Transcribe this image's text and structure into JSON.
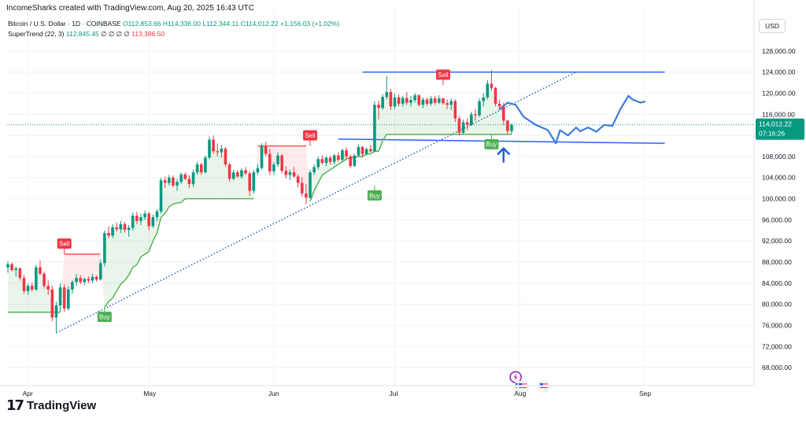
{
  "header": {
    "credit": "IncomeSharks created with TradingView.com, Aug 20, 2025 16:43 UTC",
    "symbol": "Bitcoin / U.S. Dollar · 1D · COINBASE",
    "open": "O112,853.66",
    "high": "H114,336.00",
    "low": "L112,344.11",
    "close": "C114,012.22",
    "change": "+1,156.03 (+1.02%)",
    "indicator": "SuperTrend (22, 3)",
    "indicator_value": "112,845.45",
    "indicator_flags": "∅ ∅ ∅ ∅",
    "indicator_value2": "113,386.50",
    "currency": "USD"
  },
  "brand": {
    "name": "TradingView"
  },
  "chart_data": {
    "type": "candlestick",
    "price_axis": {
      "ticks": [
        "128,000.00",
        "124,000.00",
        "120,000.00",
        "116,000.00",
        "112,000.00",
        "108,000.00",
        "104,000.00",
        "100,000.00",
        "96,000.00",
        "92,000.00",
        "88,000.00",
        "84,000.00",
        "80,000.00",
        "76,000.00",
        "72,000.00",
        "68,000.00"
      ],
      "ylim": [
        64600,
        130500
      ]
    },
    "time_axis": {
      "months": [
        "Apr",
        "May",
        "Jun",
        "Jul",
        "Aug",
        "Sep"
      ],
      "month_index": [
        5,
        35,
        66,
        96,
        127,
        158
      ]
    },
    "last_price": {
      "value": 114012.22,
      "label": "114,012.22",
      "countdown": "07:16:26"
    },
    "candles": [
      [
        87000,
        88200,
        86000,
        87600
      ],
      [
        87600,
        88000,
        86200,
        86500
      ],
      [
        86500,
        87200,
        85200,
        86800
      ],
      [
        86800,
        87000,
        84500,
        85000
      ],
      [
        85000,
        85600,
        82000,
        82500
      ],
      [
        82500,
        84000,
        81800,
        83500
      ],
      [
        83500,
        84200,
        82400,
        82800
      ],
      [
        82800,
        87500,
        82500,
        87000
      ],
      [
        87000,
        88300,
        85500,
        85800
      ],
      [
        85800,
        86200,
        83000,
        83500
      ],
      [
        83500,
        84500,
        81800,
        82800
      ],
      [
        82800,
        83500,
        76800,
        77500
      ],
      [
        77500,
        80500,
        74600,
        79800
      ],
      [
        79800,
        84000,
        78600,
        83200
      ],
      [
        83200,
        83800,
        78500,
        79200
      ],
      [
        79200,
        83500,
        78800,
        82800
      ],
      [
        82800,
        84600,
        82000,
        84200
      ],
      [
        84200,
        85800,
        83500,
        85000
      ],
      [
        85000,
        85500,
        83800,
        84200
      ],
      [
        84200,
        85000,
        83600,
        84800
      ],
      [
        84800,
        85300,
        84000,
        84500
      ],
      [
        84500,
        85800,
        84000,
        85200
      ],
      [
        85200,
        85500,
        84300,
        84700
      ],
      [
        84700,
        88500,
        84500,
        87800
      ],
      [
        87800,
        94000,
        87200,
        93500
      ],
      [
        93500,
        94800,
        92500,
        93000
      ],
      [
        93000,
        95200,
        92500,
        94600
      ],
      [
        94600,
        95500,
        93800,
        94200
      ],
      [
        94200,
        95800,
        93500,
        95200
      ],
      [
        95200,
        95600,
        93600,
        94100
      ],
      [
        94100,
        95000,
        92800,
        94500
      ],
      [
        94500,
        97400,
        94000,
        96800
      ],
      [
        96800,
        97500,
        95200,
        95800
      ],
      [
        95800,
        97200,
        95000,
        96500
      ],
      [
        96500,
        97800,
        96000,
        97200
      ],
      [
        97200,
        97500,
        94000,
        94800
      ],
      [
        94800,
        97000,
        94500,
        96500
      ],
      [
        96500,
        98000,
        95800,
        97600
      ],
      [
        97600,
        104000,
        97200,
        103500
      ],
      [
        103500,
        104200,
        102000,
        103000
      ],
      [
        103000,
        104500,
        102500,
        104000
      ],
      [
        104000,
        104400,
        102200,
        102500
      ],
      [
        102500,
        103800,
        101500,
        103200
      ],
      [
        103200,
        105000,
        102800,
        104600
      ],
      [
        104600,
        105000,
        103500,
        103800
      ],
      [
        103800,
        104500,
        102000,
        102800
      ],
      [
        102800,
        105500,
        102200,
        105000
      ],
      [
        105000,
        107000,
        104500,
        106500
      ],
      [
        106500,
        106800,
        104500,
        105000
      ],
      [
        105000,
        108200,
        104800,
        107800
      ],
      [
        107800,
        111800,
        107500,
        111200
      ],
      [
        111200,
        112000,
        108500,
        109000
      ],
      [
        109000,
        110500,
        108000,
        108800
      ],
      [
        108800,
        110200,
        107800,
        109500
      ],
      [
        109500,
        109800,
        106000,
        106500
      ],
      [
        106500,
        106800,
        103200,
        103800
      ],
      [
        103800,
        105500,
        103500,
        105000
      ],
      [
        105000,
        105400,
        104000,
        104200
      ],
      [
        104200,
        105800,
        103800,
        105400
      ],
      [
        105400,
        106000,
        104500,
        104800
      ],
      [
        104800,
        105200,
        100500,
        101500
      ],
      [
        101500,
        105500,
        101000,
        105000
      ],
      [
        105000,
        106500,
        104500,
        105800
      ],
      [
        105800,
        110500,
        105500,
        110000
      ],
      [
        110000,
        110800,
        108000,
        108500
      ],
      [
        108500,
        109500,
        104500,
        105200
      ],
      [
        105200,
        107000,
        104500,
        106500
      ],
      [
        106500,
        108800,
        106000,
        108200
      ],
      [
        108200,
        108500,
        104800,
        105300
      ],
      [
        105300,
        106200,
        103800,
        104500
      ],
      [
        104500,
        105500,
        103500,
        105000
      ],
      [
        105000,
        106000,
        104000,
        104200
      ],
      [
        104200,
        104700,
        102200,
        103000
      ],
      [
        103000,
        104000,
        100400,
        101000
      ],
      [
        101000,
        102800,
        99000,
        100200
      ],
      [
        100200,
        105500,
        100000,
        105000
      ],
      [
        105000,
        106500,
        104500,
        106000
      ],
      [
        106000,
        108000,
        105500,
        107500
      ],
      [
        107500,
        108200,
        106500,
        106800
      ],
      [
        106800,
        108000,
        106200,
        107800
      ],
      [
        107800,
        108200,
        106500,
        107000
      ],
      [
        107000,
        108500,
        106500,
        108200
      ],
      [
        108200,
        108800,
        107000,
        107400
      ],
      [
        107400,
        109500,
        107000,
        109200
      ],
      [
        109200,
        109800,
        107500,
        108000
      ],
      [
        108000,
        108400,
        105800,
        106200
      ],
      [
        106200,
        108500,
        106000,
        108200
      ],
      [
        108200,
        110300,
        108000,
        109800
      ],
      [
        109800,
        110000,
        107800,
        108500
      ],
      [
        108500,
        109700,
        108200,
        109400
      ],
      [
        109400,
        110200,
        108800,
        109000
      ],
      [
        109000,
        118500,
        108800,
        117800
      ],
      [
        117800,
        118600,
        115000,
        117200
      ],
      [
        117200,
        119800,
        116800,
        119300
      ],
      [
        119300,
        123200,
        118800,
        120200
      ],
      [
        120200,
        120800,
        116800,
        117500
      ],
      [
        117500,
        120000,
        117000,
        119200
      ],
      [
        119200,
        119800,
        117500,
        118000
      ],
      [
        118000,
        119500,
        117500,
        119100
      ],
      [
        119100,
        120200,
        117800,
        118200
      ],
      [
        118200,
        119500,
        117500,
        118700
      ],
      [
        118700,
        120000,
        118200,
        119600
      ],
      [
        119600,
        119800,
        117500,
        117800
      ],
      [
        117800,
        119200,
        117200,
        118800
      ],
      [
        118800,
        119200,
        117600,
        118000
      ],
      [
        118000,
        119500,
        117600,
        119000
      ],
      [
        119000,
        119500,
        117800,
        118200
      ],
      [
        118200,
        119600,
        118000,
        119000
      ],
      [
        119000,
        119200,
        117800,
        118100
      ],
      [
        118100,
        118800,
        117000,
        117800
      ],
      [
        117800,
        119000,
        116800,
        118500
      ],
      [
        118500,
        118800,
        114500,
        115200
      ],
      [
        115200,
        115700,
        112000,
        112500
      ],
      [
        112500,
        115000,
        112300,
        114500
      ],
      [
        114500,
        115200,
        113000,
        114000
      ],
      [
        114000,
        116500,
        113800,
        116000
      ],
      [
        116000,
        117000,
        114800,
        115800
      ],
      [
        115800,
        119000,
        115500,
        118500
      ],
      [
        118500,
        120000,
        117500,
        119200
      ],
      [
        119200,
        122500,
        118800,
        121800
      ],
      [
        121800,
        124400,
        120500,
        121000
      ],
      [
        121000,
        121200,
        117500,
        118000
      ],
      [
        118000,
        118800,
        117000,
        117500
      ],
      [
        117500,
        118200,
        114000,
        114800
      ],
      [
        114800,
        115000,
        112300,
        112800
      ],
      [
        112800,
        114300,
        112300,
        114000
      ]
    ],
    "supertrend": {
      "values": [
        78500,
        78500,
        78500,
        78500,
        78500,
        78500,
        78500,
        78500,
        78500,
        78500,
        78500,
        78500,
        78500,
        78500,
        89500,
        89500,
        89500,
        89500,
        89500,
        89500,
        89500,
        89500,
        89500,
        89500,
        79500,
        80500,
        81200,
        82500,
        83800,
        84500,
        85500,
        87000,
        87500,
        89000,
        89500,
        90000,
        92000,
        93500,
        96500,
        97200,
        98500,
        99000,
        99200,
        99300,
        100000,
        100000,
        100000,
        100000,
        100000,
        100000,
        100000,
        100000,
        100000,
        100000,
        100000,
        100000,
        100000,
        100000,
        100000,
        100000,
        100000,
        100000,
        110000,
        110000,
        110000,
        110000,
        110000,
        110000,
        110000,
        110000,
        110000,
        110000,
        110000,
        110000,
        110000,
        99500,
        101500,
        103000,
        104500,
        105000,
        105500,
        106000,
        106500,
        107000,
        107500,
        107800,
        107800,
        108000,
        108000,
        108500,
        108500,
        109000,
        109000,
        111000,
        112200,
        112200,
        112200,
        112200,
        112200,
        112200,
        112200,
        112200,
        112200,
        112200,
        112200,
        112200,
        112200,
        112200,
        112200,
        112200,
        112200,
        112200,
        112200,
        112200,
        112200,
        112200,
        112200,
        112200,
        112200,
        112200,
        112200,
        112200,
        112200,
        112200,
        112200,
        112200,
        112200,
        112200,
        121500,
        121500,
        121500,
        121500,
        121500,
        121500,
        112800,
        112800,
        112800,
        112800,
        112800,
        112800,
        112800
      ],
      "trend": "green-up / red-down",
      "signals": [
        {
          "label": "Sell",
          "index": 14,
          "price": 89500
        },
        {
          "label": "Buy",
          "index": 24,
          "price": 79500
        },
        {
          "label": "Sell",
          "index": 75,
          "price": 110000
        },
        {
          "label": "Buy",
          "index": 91,
          "price": 102500
        },
        {
          "label": "Sell",
          "index": 108,
          "price": 121500
        },
        {
          "label": "Buy",
          "index": 120,
          "price": 112200
        }
      ]
    },
    "annotations": {
      "trendline": {
        "from": [
          12,
          74600
        ],
        "to": [
          141,
          124000
        ]
      },
      "resistance": {
        "from": [
          88,
          124000
        ],
        "to": [
          163,
          124000
        ]
      },
      "support": {
        "from": [
          82,
          111300
        ],
        "to": [
          163,
          110500
        ]
      },
      "projection": [
        [
          122,
          117000
        ],
        [
          124,
          118200
        ],
        [
          126,
          117800
        ],
        [
          128,
          115500
        ],
        [
          131,
          114000
        ],
        [
          134,
          113000
        ],
        [
          136,
          110500
        ],
        [
          137,
          113000
        ],
        [
          139,
          112000
        ],
        [
          141,
          113500
        ],
        [
          142,
          112800
        ],
        [
          144,
          113500
        ],
        [
          146,
          112700
        ],
        [
          148,
          114000
        ],
        [
          150,
          113800
        ],
        [
          152,
          117000
        ],
        [
          154,
          119500
        ],
        [
          155,
          118800
        ],
        [
          157,
          118200
        ],
        [
          158,
          118400
        ]
      ]
    },
    "event_icons": [
      {
        "name": "lightning-event-icon",
        "index": 126,
        "price": 66200
      },
      {
        "name": "us-flag-event-icon",
        "index": 127,
        "price": 64400
      },
      {
        "name": "us-flag-event-icon",
        "index": 133,
        "price": 64400
      }
    ]
  }
}
